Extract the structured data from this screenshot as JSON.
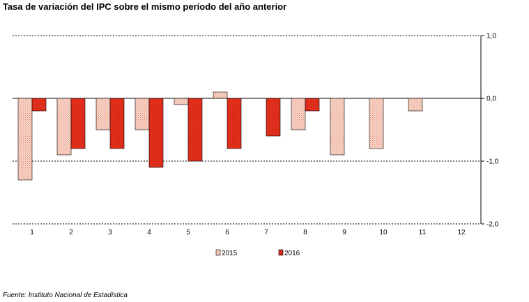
{
  "title": "Tasa de variación del IPC sobre el mismo período del año anterior",
  "source": "Fuente: Instituto Nacional de Estadística",
  "chart_data": {
    "type": "bar",
    "title": "Tasa de variación del IPC sobre el mismo período del año anterior",
    "categories": [
      "1",
      "2",
      "3",
      "4",
      "5",
      "6",
      "7",
      "8",
      "9",
      "10",
      "11",
      "12"
    ],
    "series": [
      {
        "name": "2015",
        "color": "#f5c4b4",
        "values": [
          -1.3,
          -0.9,
          -0.5,
          -0.5,
          -0.1,
          0.1,
          null,
          -0.5,
          -0.9,
          -0.8,
          -0.2,
          null
        ]
      },
      {
        "name": "2016",
        "color": "#e8321f",
        "values": [
          -0.2,
          -0.8,
          -0.8,
          -1.1,
          -1.0,
          -0.8,
          -0.6,
          -0.2,
          null,
          null,
          null,
          null
        ]
      }
    ],
    "ylim": [
      -2.0,
      1.0
    ],
    "yticks": [
      1.0,
      0.0,
      -1.0,
      -2.0
    ],
    "ytick_labels": [
      "1,0",
      "0,0",
      "-1,0",
      "-2,0"
    ],
    "y_axis_position": "right",
    "grid": true,
    "legend_position": "bottom"
  }
}
